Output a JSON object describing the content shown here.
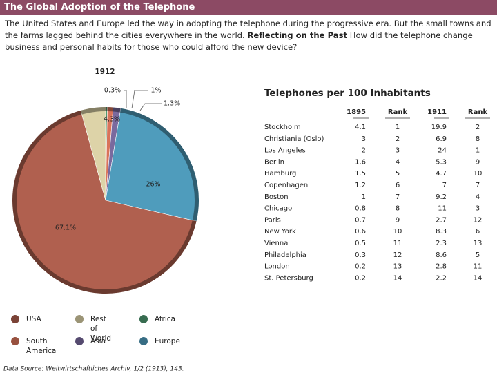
{
  "header": {
    "title": "The Global Adoption of the Telephone"
  },
  "intro": {
    "text": "The United States and Europe led the way in adopting the telephone during the progressive era. But the small towns and the farms lagged behind the cities everywhere in the world.",
    "label": "Reflecting on the Past",
    "question": "How did the telephone change business and personal habits for those who could afford the new device?"
  },
  "chart_data": {
    "type": "pie",
    "title": "1912",
    "categories": [
      "Africa",
      "South America",
      "Asia",
      "Europe",
      "USA",
      "Rest of World"
    ],
    "values": [
      0.3,
      1,
      1.3,
      26,
      67.1,
      4.3
    ],
    "value_labels": [
      "0.3%",
      "1%",
      "1.3%",
      "26%",
      "67.1%",
      "4.3%"
    ],
    "colors": [
      "#4f9a72",
      "#d9735a",
      "#7a6a9e",
      "#4f9cbc",
      "#b0604f",
      "#ddd3a8"
    ]
  },
  "table": {
    "title": "Telephones per 100 Inhabitants",
    "headers": [
      "1895",
      "Rank",
      "1911",
      "Rank"
    ],
    "rows": [
      [
        "Stockholm",
        4.1,
        1,
        19.9,
        2
      ],
      [
        "Christiania (Oslo)",
        3,
        2,
        6.9,
        8
      ],
      [
        "Los Angeles",
        2,
        3,
        24,
        1
      ],
      [
        "Berlin",
        1.6,
        4,
        5.3,
        9
      ],
      [
        "Hamburg",
        1.5,
        5,
        4.7,
        10
      ],
      [
        "Copenhagen",
        1.2,
        6,
        7,
        7
      ],
      [
        "Boston",
        1,
        7,
        9.2,
        4
      ],
      [
        "Chicago",
        0.8,
        8,
        11,
        3
      ],
      [
        "Paris",
        0.7,
        9,
        2.7,
        12
      ],
      [
        "New York",
        0.6,
        10,
        8.3,
        6
      ],
      [
        "Vienna",
        0.5,
        11,
        2.3,
        13
      ],
      [
        "Philadelphia",
        0.3,
        12,
        8.6,
        5
      ],
      [
        "London",
        0.2,
        13,
        2.8,
        11
      ],
      [
        "St. Petersburg",
        0.2,
        14,
        2.2,
        14
      ]
    ]
  },
  "source": "Data Source: Weltwirtschaftliches Archiv, 1/2 (1913), 143."
}
